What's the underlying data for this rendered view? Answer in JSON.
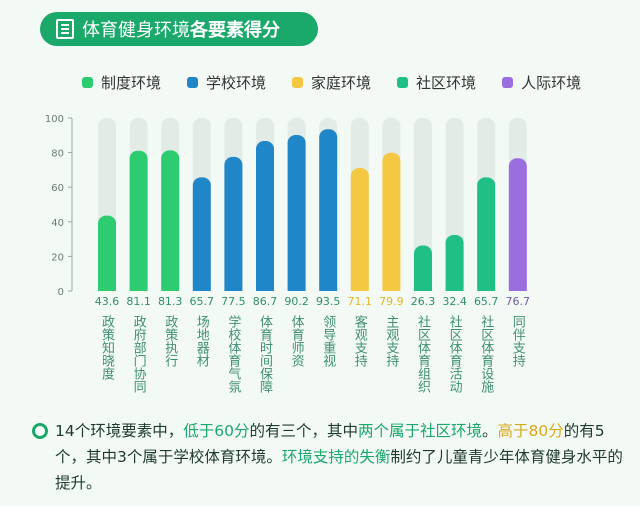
{
  "title": {
    "part1": "体育健身环境",
    "part2": "各要素得分"
  },
  "legend": [
    {
      "name": "制度环境",
      "color": "#2ecc71"
    },
    {
      "name": "学校环境",
      "color": "#1f86c8"
    },
    {
      "name": "家庭环境",
      "color": "#f4c842"
    },
    {
      "name": "社区环境",
      "color": "#1fbf86"
    },
    {
      "name": "人际环境",
      "color": "#9b6ee0"
    }
  ],
  "chart_data": {
    "type": "bar",
    "ylim": [
      0,
      100
    ],
    "yticks": [
      "0",
      "20",
      "40",
      "60",
      "80",
      "100"
    ],
    "categories": [
      "政策知晓度",
      "政府部门协同",
      "政策执行",
      "场地器材",
      "学校体育气氛",
      "体育时间保障",
      "体育师资",
      "领导重视",
      "客观支持",
      "主观支持",
      "社区体育组织",
      "社区体育活动",
      "社区体育设施",
      "同伴支持"
    ],
    "values": [
      43.6,
      81.1,
      81.3,
      65.7,
      77.5,
      86.7,
      90.2,
      93.5,
      71.1,
      79.9,
      26.3,
      32.4,
      65.7,
      76.7
    ],
    "value_labels": [
      "43.6",
      "81.1",
      "81.3",
      "65.7",
      "77.5",
      "86.7",
      "90.2",
      "93.5",
      "71.1",
      "79.9",
      "26.3",
      "32.4",
      "65.7",
      "76.7"
    ],
    "groups": [
      "制度环境",
      "制度环境",
      "制度环境",
      "学校环境",
      "学校环境",
      "学校环境",
      "学校环境",
      "学校环境",
      "家庭环境",
      "家庭环境",
      "社区环境",
      "社区环境",
      "社区环境",
      "人际环境"
    ],
    "grid": false,
    "legend_position": "top"
  },
  "colors": {
    "制度环境": "#2ecc71",
    "学校环境": "#1f86c8",
    "家庭环境": "#f4c842",
    "社区环境": "#1fbf86",
    "人际环境": "#9b6ee0",
    "background_bar": "#e3ebe7",
    "label_text": "#3f8f72"
  },
  "footer": {
    "s1": "14个环境要素中，",
    "s2": "低于60分",
    "s3": "的有三个，其中",
    "s4": "两个属于社区环境",
    "s5": "。",
    "s6": "高于80分",
    "s7": "的有5个，其中3个属于学校体育环境。",
    "s8": "环境支持的失衡",
    "s9": "制约了儿童青少年体育健身水平的提升。"
  }
}
